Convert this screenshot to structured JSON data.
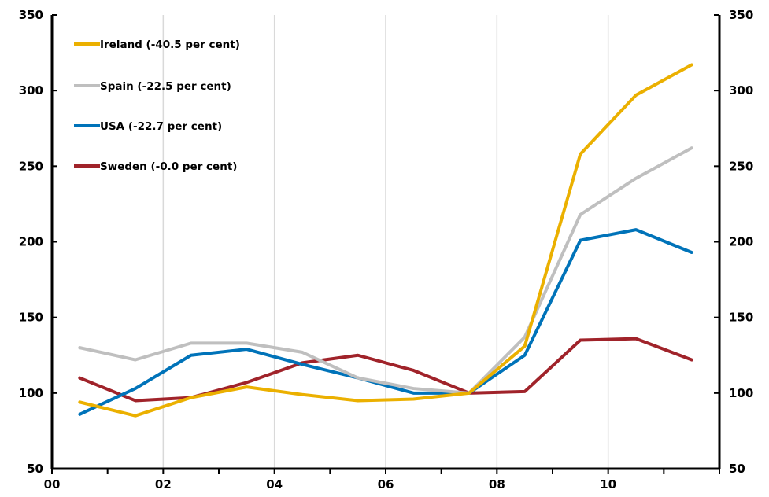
{
  "chart_data": {
    "type": "line",
    "title": "",
    "xlabel": "",
    "ylabel": "",
    "x_ticks": [
      "00",
      "02",
      "04",
      "06",
      "08",
      "10"
    ],
    "x_range": [
      0,
      12
    ],
    "ylim": [
      50,
      350
    ],
    "y_ticks": [
      50,
      100,
      150,
      200,
      250,
      300,
      350
    ],
    "grid": "vertical",
    "legend_placement": "top-left",
    "x": [
      0.5,
      1.5,
      2.5,
      3.5,
      4.5,
      5.5,
      6.5,
      7.5,
      8.5,
      9.5,
      10.5,
      11.5
    ],
    "series": [
      {
        "name": "Ireland (-40.5 per cent)",
        "color": "#EBB000",
        "values": [
          94,
          85,
          97,
          104,
          99,
          95,
          96,
          100,
          131,
          258,
          297,
          317
        ]
      },
      {
        "name": "Spain (-22.5 per cent)",
        "color": "#BFBFBF",
        "values": [
          130,
          122,
          133,
          133,
          127,
          110,
          103,
          100,
          137,
          218,
          242,
          262
        ]
      },
      {
        "name": "USA (-22.7 per cent)",
        "color": "#0073B9",
        "values": [
          86,
          103,
          125,
          129,
          119,
          110,
          100,
          100,
          125,
          201,
          208,
          193
        ]
      },
      {
        "name": "Sweden (-0.0 per cent)",
        "color": "#A0232A",
        "values": [
          110,
          95,
          97,
          107,
          120,
          125,
          115,
          100,
          101,
          135,
          136,
          122
        ]
      }
    ]
  }
}
